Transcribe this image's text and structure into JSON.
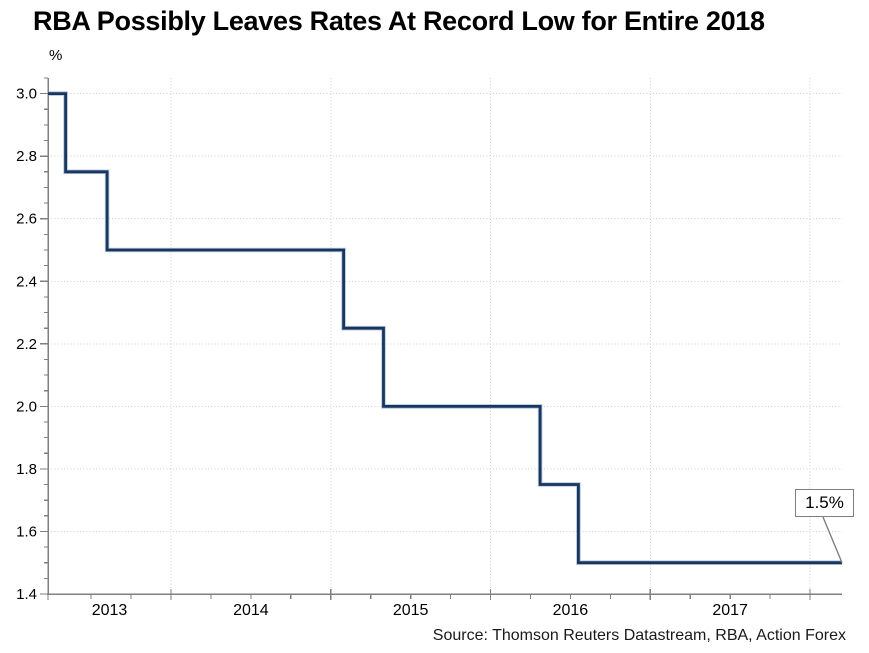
{
  "header": {
    "title": "RBA Possibly Leaves Rates At Record Low for Entire 2018"
  },
  "axis_unit": {
    "label": "%"
  },
  "footer": {
    "source": "Source: Thomson Reuters Datastream, RBA, Action Forex"
  },
  "annotation": {
    "label": "1.5%"
  },
  "colors": {
    "line": "#17375e",
    "line_halo": "#8099c0",
    "axis": "#7f7f7f",
    "tick": "#7f7f7f",
    "grid": "#cfcfcf",
    "leader": "#7f7f7f",
    "text": "#000000",
    "background": "#ffffff"
  },
  "chart_data": {
    "type": "line",
    "subtype": "step",
    "title": "RBA Possibly Leaves Rates At Record Low for Entire 2018",
    "ylabel": "%",
    "xlabel": "",
    "x_domain": [
      2013.23,
      2018.2
    ],
    "ylim": [
      1.4,
      3.05
    ],
    "y_ticks": [
      "3.0",
      "2.8",
      "2.6",
      "2.4",
      "2.2",
      "2.0",
      "1.8",
      "1.6",
      "1.4"
    ],
    "y_minor_step": 0.05,
    "x_year_gridlines": [
      2014,
      2015,
      2016,
      2017,
      2018
    ],
    "x_tick_labels": [
      "2013",
      "2014",
      "2015",
      "2016",
      "2017"
    ],
    "x_minor_step": 0.25,
    "grid": true,
    "legend_position": "none",
    "steps": [
      {
        "x": 2013.23,
        "rate": 3.0,
        "date_approx": "chart start (early 2013)"
      },
      {
        "x": 2013.34,
        "rate": 2.75,
        "date_approx": "May 2013"
      },
      {
        "x": 2013.6,
        "rate": 2.5,
        "date_approx": "Aug 2013"
      },
      {
        "x": 2015.08,
        "rate": 2.25,
        "date_approx": "Feb 2015"
      },
      {
        "x": 2015.33,
        "rate": 2.0,
        "date_approx": "May 2015"
      },
      {
        "x": 2016.31,
        "rate": 1.75,
        "date_approx": "May 2016"
      },
      {
        "x": 2016.55,
        "rate": 1.5,
        "date_approx": "Aug 2016"
      }
    ],
    "end_value": 1.5,
    "annotation": {
      "text": "1.5%",
      "value": 1.5
    }
  }
}
